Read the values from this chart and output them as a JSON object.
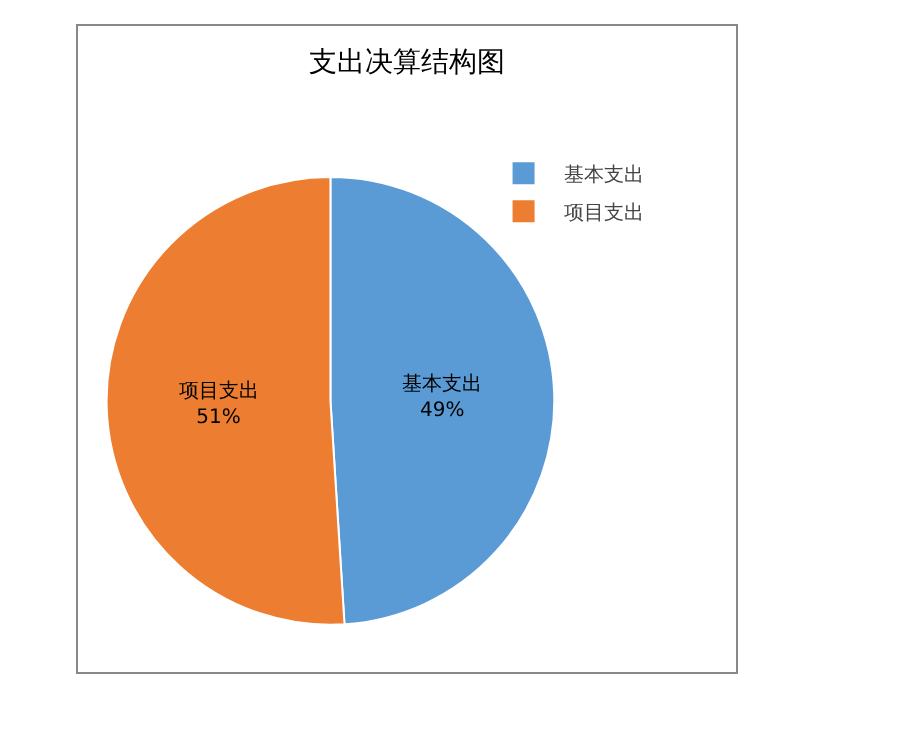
{
  "chart_data": {
    "type": "pie",
    "title": "支出决算结构图",
    "categories": [
      "基本支出",
      "项目支出"
    ],
    "values": [
      49,
      51
    ],
    "value_labels": [
      "49%",
      "51%"
    ],
    "colors": [
      "#5b9bd5",
      "#ed7d31"
    ],
    "legend": "top right"
  }
}
